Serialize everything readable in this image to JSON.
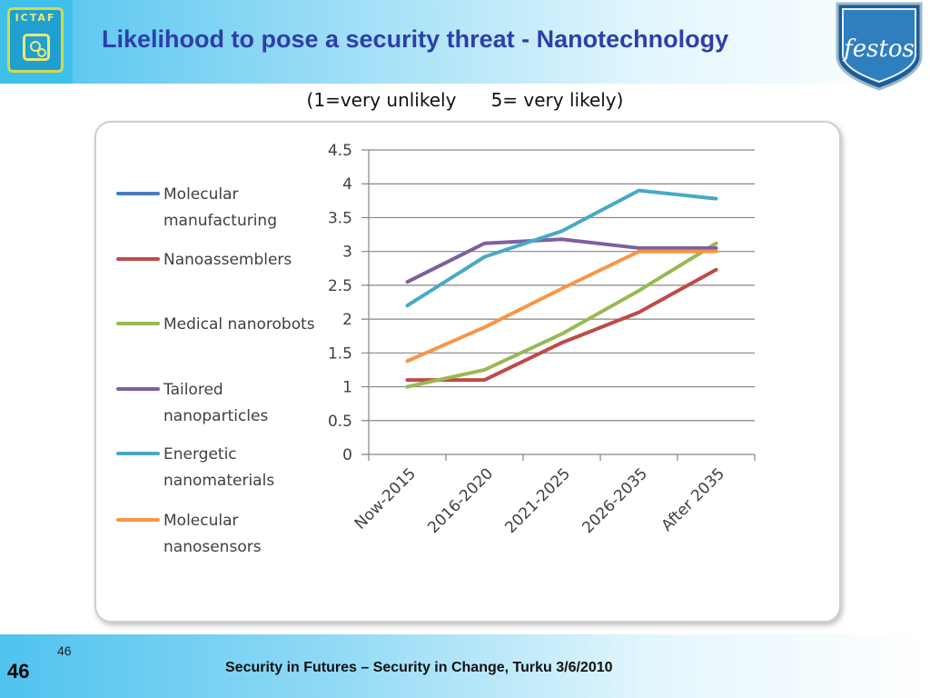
{
  "header": {
    "title": "Likelihood to pose a security threat - Nanotechnology",
    "logo_left_text": "ICTAF",
    "logo_right_text": "festos"
  },
  "subtitle": "(1=very unlikely      5= very likely)",
  "footer": {
    "slide_number": "46",
    "slide_number_small": "46",
    "text": "Security in Futures – Security in Change, Turku 3/6/2010"
  },
  "colors": {
    "header_gradient_start": "#4fc3ef",
    "title": "#2e3fa8",
    "grid": "#868686"
  },
  "chart_data": {
    "type": "line",
    "title": "",
    "xlabel": "",
    "ylabel": "",
    "ylim": [
      0,
      4.5
    ],
    "yticks": [
      "4.5",
      "4",
      "3.5",
      "3",
      "2.5",
      "2",
      "1.5",
      "1",
      "0.5",
      "0"
    ],
    "grid": true,
    "legend_position": "left",
    "categories": [
      "Now-2015",
      "2016-2020",
      "2021-2025",
      "2026-2035",
      "After 2035"
    ],
    "series": [
      {
        "name": "Molecular manufacturing",
        "legend_lines": [
          "Molecular",
          "manufacturing"
        ],
        "color": "#4a7ebb",
        "values": [
          null,
          null,
          null,
          null,
          null
        ]
      },
      {
        "name": "Nanoassemblers",
        "legend_lines": [
          "Nanoassemblers"
        ],
        "color": "#be4b48",
        "values": [
          1.1,
          1.1,
          1.65,
          2.1,
          2.73
        ]
      },
      {
        "name": "Medical nanorobots",
        "legend_lines": [
          "Medical nanorobots"
        ],
        "color": "#98b954",
        "values": [
          1.0,
          1.25,
          1.78,
          2.42,
          3.12
        ]
      },
      {
        "name": "Tailored nanoparticles",
        "legend_lines": [
          "Tailored",
          "nanoparticles"
        ],
        "color": "#7d60a0",
        "values": [
          2.55,
          3.12,
          3.18,
          3.05,
          3.05
        ]
      },
      {
        "name": "Energetic nanomaterials",
        "legend_lines": [
          "Energetic",
          "nanomaterials"
        ],
        "color": "#46aac5",
        "values": [
          2.2,
          2.92,
          3.3,
          3.9,
          3.78
        ]
      },
      {
        "name": "Molecular nanosensors",
        "legend_lines": [
          "Molecular",
          "nanosensors"
        ],
        "color": "#f79646",
        "values": [
          1.38,
          1.88,
          2.45,
          3.0,
          3.0
        ]
      }
    ]
  }
}
